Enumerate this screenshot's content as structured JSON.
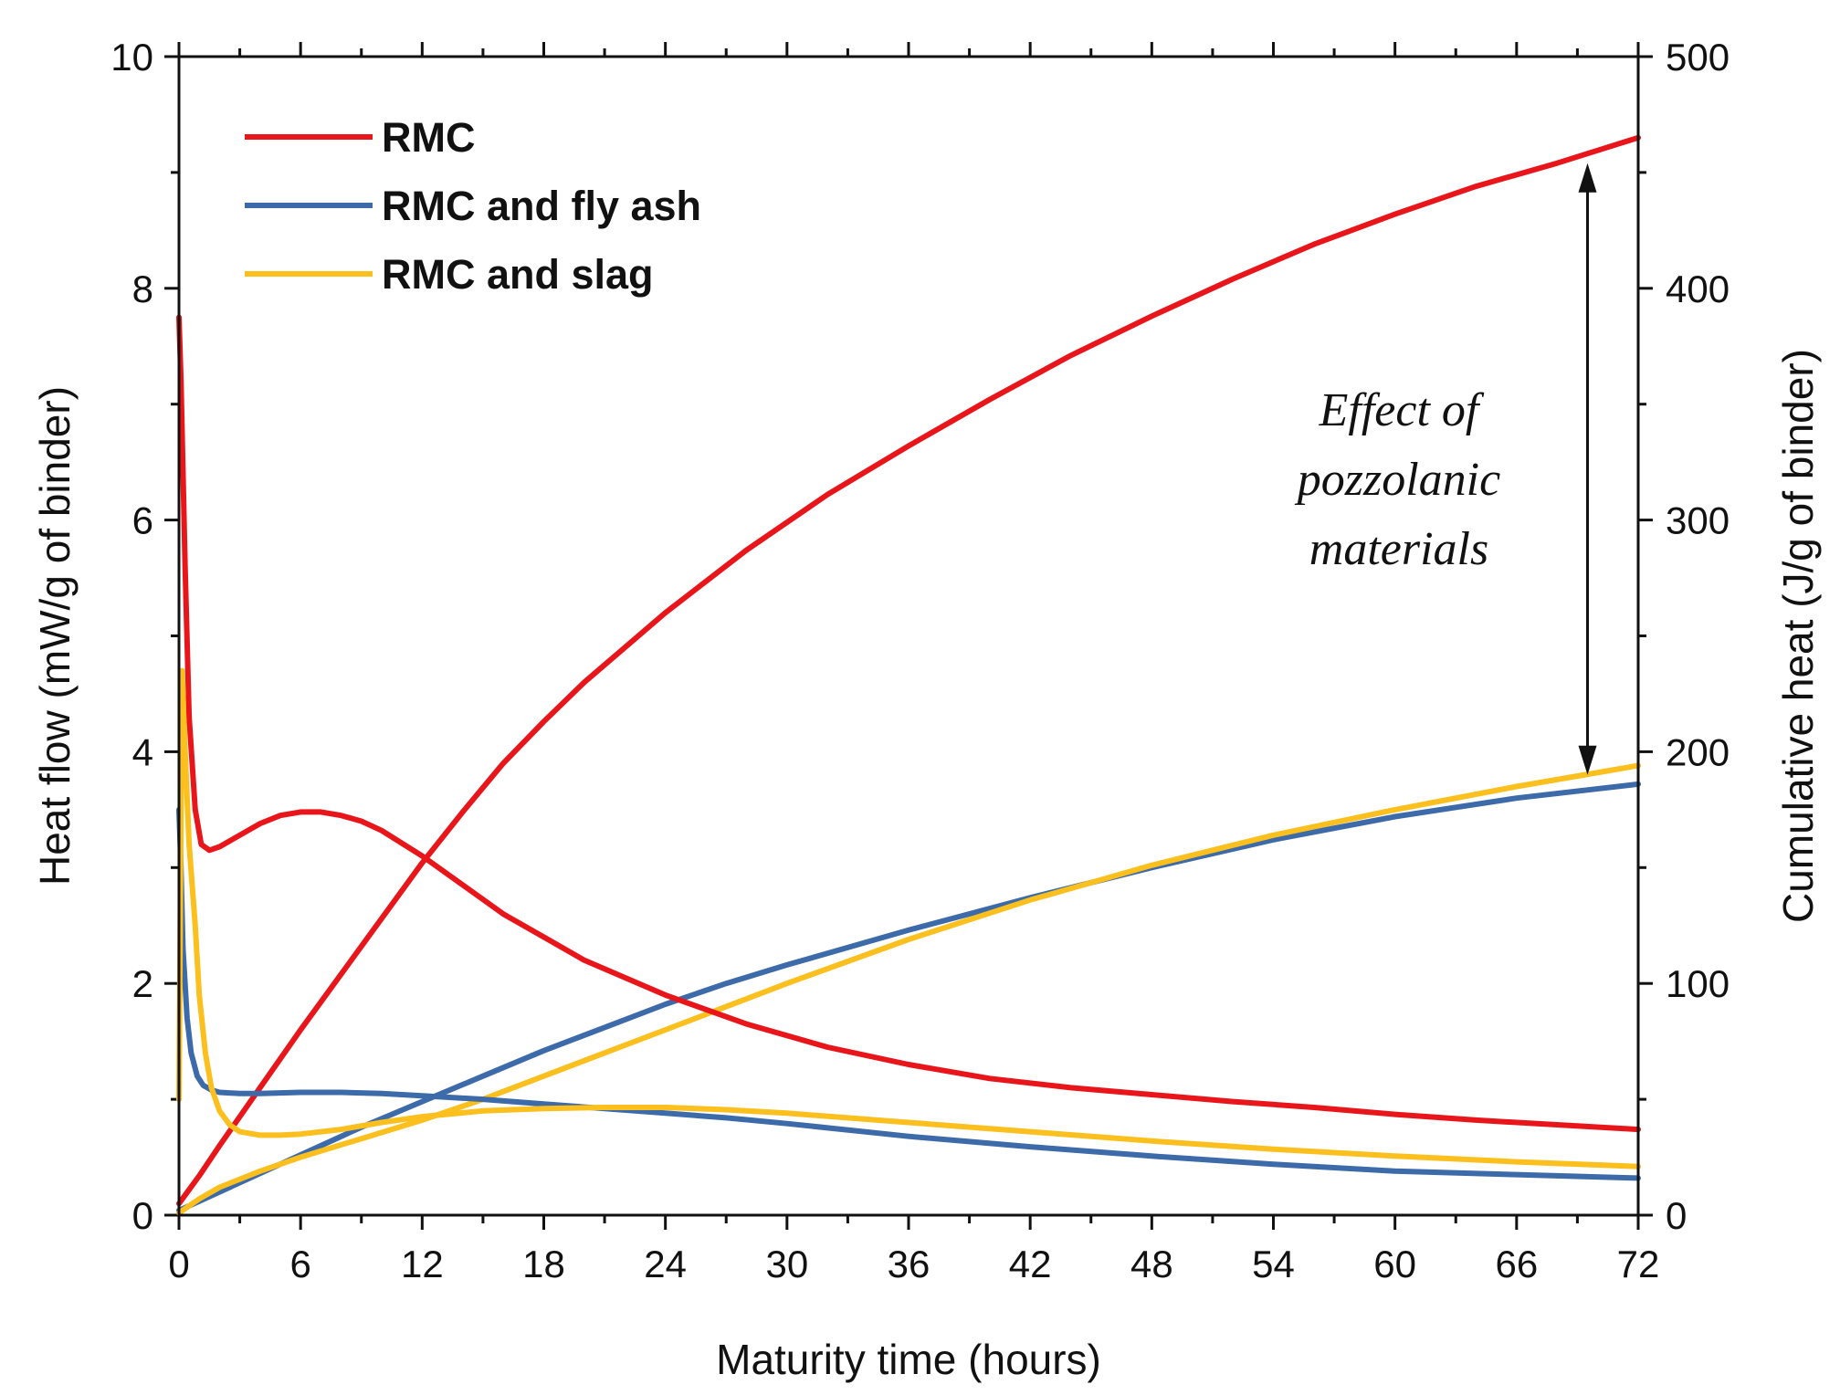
{
  "chart_data": {
    "type": "line",
    "title": "",
    "xlabel": "Maturity time (hours)",
    "ylabel_left": "Heat flow (mW/g of binder)",
    "ylabel_right": "Cumulative heat (J/g of binder)",
    "xlim": [
      0,
      72
    ],
    "ylim_left": [
      0,
      10
    ],
    "ylim_right": [
      0,
      500
    ],
    "x_ticks": [
      "0",
      "6",
      "12",
      "18",
      "24",
      "30",
      "36",
      "42",
      "48",
      "54",
      "60",
      "66",
      "72"
    ],
    "y_left_ticks": [
      "0",
      "2",
      "4",
      "6",
      "8",
      "10"
    ],
    "y_right_ticks": [
      "0",
      "100",
      "200",
      "300",
      "400",
      "500"
    ],
    "legend_position": "top-left",
    "annotation": {
      "lines": [
        "Effect of",
        "pozzolanic",
        "materials"
      ],
      "arrow_x": 69.5,
      "arrow_from_right": 454,
      "arrow_to_right": 190
    },
    "series": [
      {
        "name": "RMC",
        "color": "#e8161b",
        "heat_flow": {
          "x": [
            0,
            0.1,
            0.3,
            0.5,
            0.8,
            1.1,
            1.5,
            2,
            3,
            4,
            5,
            6,
            7,
            8,
            9,
            10,
            12,
            14,
            16,
            18,
            20,
            24,
            28,
            32,
            36,
            40,
            44,
            48,
            52,
            56,
            60,
            64,
            68,
            72
          ],
          "y": [
            7.75,
            7.2,
            5.6,
            4.3,
            3.5,
            3.2,
            3.15,
            3.18,
            3.28,
            3.38,
            3.45,
            3.48,
            3.48,
            3.45,
            3.4,
            3.32,
            3.1,
            2.85,
            2.6,
            2.4,
            2.2,
            1.9,
            1.65,
            1.45,
            1.3,
            1.18,
            1.1,
            1.04,
            0.98,
            0.93,
            0.87,
            0.82,
            0.78,
            0.74
          ]
        },
        "cumulative_heat": {
          "x": [
            0,
            1,
            2,
            4,
            6,
            8,
            10,
            12,
            14,
            16,
            18,
            20,
            24,
            28,
            32,
            36,
            40,
            44,
            48,
            52,
            56,
            60,
            64,
            68,
            72
          ],
          "y": [
            5,
            17,
            30,
            55,
            80,
            104,
            128,
            152,
            174,
            195,
            213,
            230,
            260,
            287,
            311,
            332,
            352,
            371,
            388,
            404,
            419,
            432,
            444,
            454,
            465
          ]
        }
      },
      {
        "name": "RMC and fly ash",
        "color": "#3d6aa8",
        "heat_flow": {
          "x": [
            0,
            0.1,
            0.2,
            0.4,
            0.6,
            0.9,
            1.2,
            1.6,
            2,
            3,
            4,
            6,
            8,
            10,
            12,
            15,
            18,
            21,
            24,
            27,
            30,
            36,
            42,
            48,
            54,
            60,
            66,
            72
          ],
          "y": [
            3.5,
            3.0,
            2.3,
            1.7,
            1.4,
            1.2,
            1.12,
            1.08,
            1.06,
            1.05,
            1.05,
            1.06,
            1.06,
            1.05,
            1.03,
            1.0,
            0.96,
            0.92,
            0.88,
            0.84,
            0.79,
            0.68,
            0.59,
            0.51,
            0.44,
            0.38,
            0.35,
            0.32
          ]
        },
        "cumulative_heat": {
          "x": [
            0,
            1,
            2,
            4,
            6,
            9,
            12,
            15,
            18,
            21,
            24,
            27,
            30,
            36,
            42,
            48,
            54,
            60,
            66,
            72
          ],
          "y": [
            2,
            6,
            10,
            18,
            26,
            38,
            49,
            60,
            71,
            81,
            91,
            100,
            108,
            123,
            137,
            150,
            162,
            172,
            180,
            186
          ]
        }
      },
      {
        "name": "RMC and slag",
        "color": "#fbbf1e",
        "heat_flow": {
          "x": [
            0,
            0.15,
            0.3,
            0.5,
            0.8,
            1.0,
            1.3,
            1.6,
            2,
            2.5,
            3,
            4,
            5,
            6,
            8,
            10,
            12,
            15,
            18,
            21,
            24,
            27,
            30,
            36,
            42,
            48,
            54,
            60,
            66,
            72
          ],
          "y": [
            1.0,
            4.7,
            4.0,
            3.2,
            2.5,
            1.9,
            1.4,
            1.1,
            0.9,
            0.78,
            0.72,
            0.69,
            0.69,
            0.7,
            0.74,
            0.8,
            0.85,
            0.9,
            0.92,
            0.93,
            0.93,
            0.91,
            0.88,
            0.8,
            0.72,
            0.64,
            0.57,
            0.51,
            0.46,
            0.42
          ]
        },
        "cumulative_heat": {
          "x": [
            0,
            1,
            2,
            4,
            6,
            9,
            12,
            15,
            18,
            21,
            24,
            27,
            30,
            36,
            42,
            48,
            54,
            60,
            66,
            72
          ],
          "y": [
            1,
            7,
            12,
            19,
            25,
            33,
            41,
            50,
            60,
            70,
            80,
            90,
            100,
            119,
            136,
            151,
            164,
            175,
            185,
            194
          ]
        }
      }
    ]
  }
}
